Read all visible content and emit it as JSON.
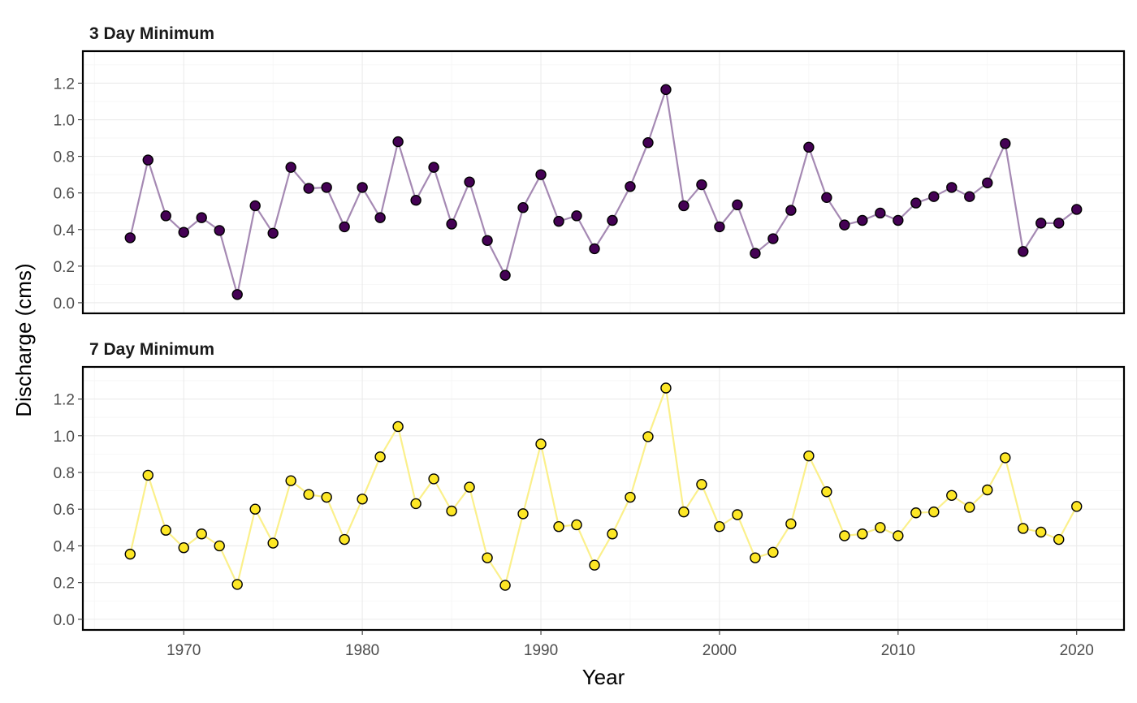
{
  "chart_data": {
    "type": "line",
    "xlabel": "Year",
    "ylabel": "Discharge (cms)",
    "x_ticks": [
      1970,
      1980,
      1990,
      2000,
      2010,
      2020
    ],
    "xlim": [
      1964.35,
      2022.65
    ],
    "y_ticks": [
      0.0,
      0.2,
      0.4,
      0.6,
      0.8,
      1.0,
      1.2
    ],
    "y_tick_labels": [
      "0.0",
      "0.2",
      "0.4",
      "0.6",
      "0.8",
      "1.0",
      "1.2"
    ],
    "grid": true,
    "legend": "none",
    "x": [
      1967,
      1968,
      1969,
      1970,
      1971,
      1972,
      1973,
      1974,
      1975,
      1976,
      1977,
      1978,
      1979,
      1980,
      1981,
      1982,
      1983,
      1984,
      1985,
      1986,
      1987,
      1988,
      1989,
      1990,
      1991,
      1992,
      1993,
      1994,
      1995,
      1996,
      1997,
      1998,
      1999,
      2000,
      2001,
      2002,
      2003,
      2004,
      2005,
      2006,
      2007,
      2008,
      2009,
      2010,
      2011,
      2012,
      2013,
      2014,
      2015,
      2016,
      2017,
      2018,
      2019,
      2020
    ],
    "panels": [
      {
        "title": "3 Day Minimum",
        "ylim": [
          -0.058,
          1.375
        ],
        "line_color": "#a589b3",
        "point_fill": "#440154",
        "values": [
          0.355,
          0.78,
          0.475,
          0.385,
          0.465,
          0.395,
          0.045,
          0.53,
          0.38,
          0.74,
          0.625,
          0.63,
          0.415,
          0.63,
          0.465,
          0.88,
          0.56,
          0.74,
          0.43,
          0.66,
          0.34,
          0.15,
          0.52,
          0.7,
          0.445,
          0.475,
          0.295,
          0.45,
          0.635,
          0.875,
          1.165,
          0.53,
          0.645,
          0.415,
          0.535,
          0.27,
          0.35,
          0.505,
          0.85,
          0.575,
          0.425,
          0.45,
          0.49,
          0.45,
          0.545,
          0.58,
          0.63,
          0.58,
          0.655,
          0.87,
          0.28,
          0.435,
          0.435,
          0.51
        ]
      },
      {
        "title": "7 Day Minimum",
        "ylim": [
          -0.058,
          1.375
        ],
        "line_color": "#fbf08b",
        "point_fill": "#fde725",
        "values": [
          0.355,
          0.785,
          0.485,
          0.39,
          0.465,
          0.4,
          0.19,
          0.6,
          0.415,
          0.755,
          0.68,
          0.665,
          0.435,
          0.655,
          0.885,
          1.05,
          0.63,
          0.765,
          0.59,
          0.72,
          0.335,
          0.185,
          0.575,
          0.955,
          0.505,
          0.515,
          0.295,
          0.465,
          0.665,
          0.995,
          1.26,
          0.585,
          0.735,
          0.505,
          0.57,
          0.335,
          0.365,
          0.52,
          0.89,
          0.695,
          0.455,
          0.465,
          0.5,
          0.455,
          0.58,
          0.585,
          0.675,
          0.61,
          0.705,
          0.88,
          0.495,
          0.475,
          0.435,
          0.615
        ]
      }
    ]
  }
}
